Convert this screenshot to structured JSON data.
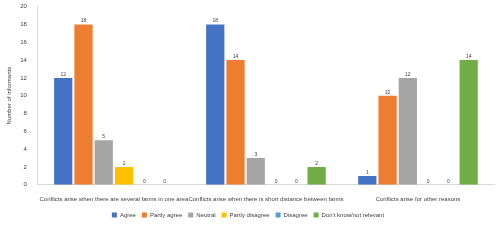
{
  "chart_data": {
    "type": "bar",
    "y_label": "Number of informants",
    "categories": [
      "Conflicts arise when there are several farms in one area",
      "Conflicts arise when there is short distance between farms",
      "Conflicts arise for other reasons"
    ],
    "series": [
      {
        "name": "Agree",
        "color": "#4472c4",
        "values": [
          12,
          18,
          1
        ]
      },
      {
        "name": "Partly agree",
        "color": "#ed7d31",
        "values": [
          18,
          14,
          10
        ]
      },
      {
        "name": "Neutral",
        "color": "#a5a5a5",
        "values": [
          5,
          3,
          12
        ]
      },
      {
        "name": "Partly disagree",
        "color": "#ffc000",
        "values": [
          2,
          0,
          0
        ]
      },
      {
        "name": "Disagree",
        "color": "#5b9bd5",
        "values": [
          0,
          0,
          0
        ]
      },
      {
        "name": "Don't know/not relevant",
        "color": "#70ad47",
        "values": [
          0,
          2,
          14
        ]
      }
    ],
    "ylim": [
      0,
      20
    ],
    "yticks": [
      0,
      2,
      4,
      6,
      8,
      10,
      12,
      14,
      16,
      18,
      20
    ],
    "grid": false,
    "legend": "bottom",
    "data_labels": true
  }
}
